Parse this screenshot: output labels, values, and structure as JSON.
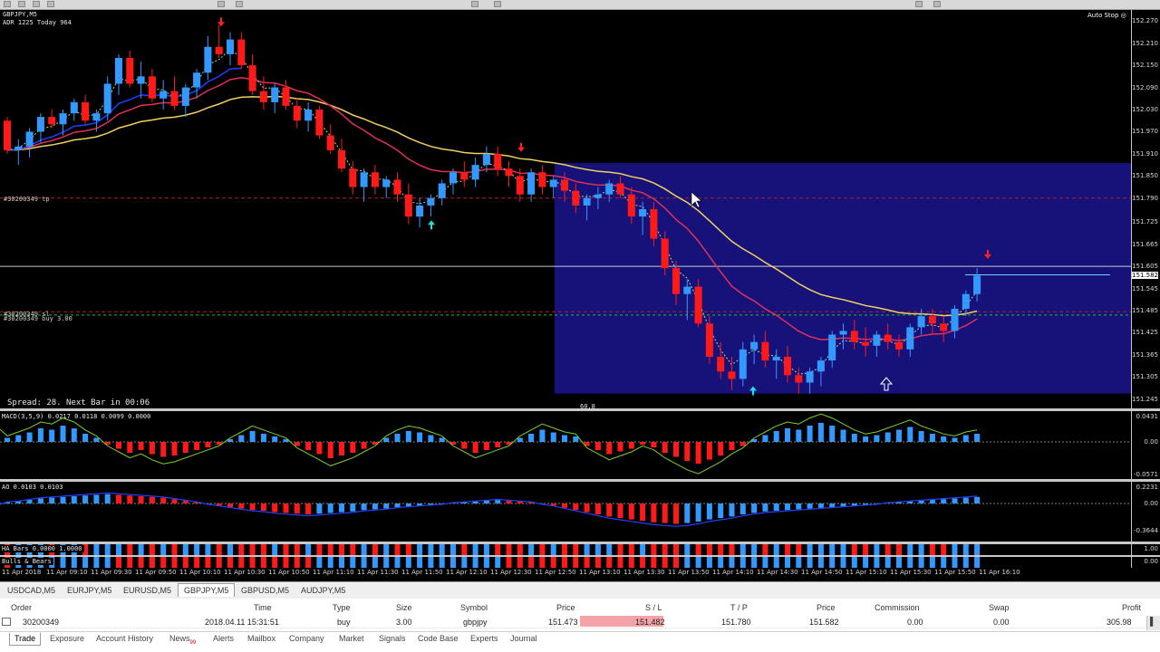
{
  "chart": {
    "symbol_line": "GBPJPY,M5",
    "adr_line": "ADR 1225  Today 964",
    "auto_stop": "Auto Stop",
    "tp_label": "#30200349 tp",
    "sl_label": "#30200349 sl",
    "buy_label": "#30200349 buy 3.00",
    "spread_text": "Spread: 28. Next Bar in 00:06",
    "box_label": "60.8",
    "macd_label": "MACD(3,5,9) 0.0217 0.0118 0.0099 0.0000",
    "ao_label": "AO 0.0103 0.0103",
    "ha_label": "HA Bars 0.0000 1.0000",
    "bb_label": "Bulls & Bears",
    "price_ticks": [
      "152.270",
      "152.210",
      "152.150",
      "152.090",
      "152.030",
      "151.970",
      "151.910",
      "151.850",
      "151.790",
      "151.725",
      "151.665",
      "151.605",
      "151.582",
      "151.545",
      "151.485",
      "151.425",
      "151.365",
      "151.305",
      "151.245"
    ],
    "macd_ticks": [
      "0.0431",
      "0.00",
      "-0.0571"
    ],
    "ao_ticks": [
      "0.2231",
      "0.00",
      "-0.3644"
    ],
    "hb_ticks": [
      "1.00",
      "0.00"
    ],
    "time_ticks": [
      "11 Apr 2018",
      "11 Apr 09:10",
      "11 Apr 09:30",
      "11 Apr 09:50",
      "11 Apr 10:10",
      "11 Apr 10:30",
      "11 Apr 10:50",
      "11 Apr 11:10",
      "11 Apr 11:30",
      "11 Apr 11:50",
      "11 Apr 12:10",
      "11 Apr 12:30",
      "11 Apr 12:50",
      "11 Apr 13:10",
      "11 Apr 13:30",
      "11 Apr 13:50",
      "11 Apr 14:10",
      "11 Apr 14:30",
      "11 Apr 14:50",
      "11 Apr 15:10",
      "11 Apr 15:30",
      "11 Apr 15:50",
      "11 Apr 16:10"
    ],
    "candles": [
      [
        152.0,
        152.01,
        151.91,
        151.92
      ],
      [
        151.92,
        151.95,
        151.88,
        151.93
      ],
      [
        151.93,
        151.98,
        151.9,
        151.97
      ],
      [
        151.97,
        152.02,
        151.94,
        152.01
      ],
      [
        152.01,
        152.03,
        151.98,
        151.99
      ],
      [
        151.99,
        152.03,
        151.96,
        152.02
      ],
      [
        152.02,
        152.06,
        152.0,
        152.05
      ],
      [
        152.05,
        152.07,
        151.99,
        152.0
      ],
      [
        152.0,
        152.03,
        151.97,
        152.02
      ],
      [
        152.02,
        152.12,
        152.0,
        152.1
      ],
      [
        152.1,
        152.18,
        152.07,
        152.17
      ],
      [
        152.17,
        152.19,
        152.09,
        152.1
      ],
      [
        152.1,
        152.16,
        152.06,
        152.12
      ],
      [
        152.12,
        152.14,
        152.05,
        152.06
      ],
      [
        152.06,
        152.11,
        152.03,
        152.08
      ],
      [
        152.08,
        152.12,
        152.03,
        152.04
      ],
      [
        152.04,
        152.1,
        152.01,
        152.09
      ],
      [
        152.09,
        152.14,
        152.06,
        152.13
      ],
      [
        152.13,
        152.23,
        152.11,
        152.2
      ],
      [
        152.2,
        152.26,
        152.17,
        152.18
      ],
      [
        152.18,
        152.24,
        152.15,
        152.22
      ],
      [
        152.22,
        152.24,
        152.14,
        152.15
      ],
      [
        152.15,
        152.18,
        152.07,
        152.08
      ],
      [
        152.08,
        152.12,
        152.03,
        152.05
      ],
      [
        152.05,
        152.1,
        152.02,
        152.09
      ],
      [
        152.09,
        152.11,
        152.03,
        152.04
      ],
      [
        152.04,
        152.06,
        151.98,
        152.0
      ],
      [
        152.0,
        152.05,
        151.97,
        152.03
      ],
      [
        152.03,
        152.04,
        151.95,
        151.96
      ],
      [
        151.96,
        151.99,
        151.91,
        151.92
      ],
      [
        151.92,
        151.95,
        151.86,
        151.87
      ],
      [
        151.87,
        151.89,
        151.8,
        151.82
      ],
      [
        151.82,
        151.87,
        151.78,
        151.86
      ],
      [
        151.86,
        151.88,
        151.8,
        151.82
      ],
      [
        151.82,
        151.85,
        151.79,
        151.84
      ],
      [
        151.84,
        151.86,
        151.78,
        151.8
      ],
      [
        151.8,
        151.83,
        151.72,
        151.74
      ],
      [
        151.74,
        151.79,
        151.71,
        151.77
      ],
      [
        151.77,
        151.8,
        151.74,
        151.79
      ],
      [
        151.79,
        151.84,
        151.77,
        151.83
      ],
      [
        151.83,
        151.87,
        151.8,
        151.86
      ],
      [
        151.86,
        151.89,
        151.82,
        151.84
      ],
      [
        151.84,
        151.9,
        151.82,
        151.88
      ],
      [
        151.88,
        151.93,
        151.86,
        151.91
      ],
      [
        151.91,
        151.93,
        151.85,
        151.87
      ],
      [
        151.87,
        151.89,
        151.82,
        151.85
      ],
      [
        151.85,
        151.87,
        151.78,
        151.8
      ],
      [
        151.8,
        151.87,
        151.78,
        151.86
      ],
      [
        151.86,
        151.88,
        151.8,
        151.82
      ],
      [
        151.82,
        151.85,
        151.79,
        151.84
      ],
      [
        151.84,
        151.86,
        151.78,
        151.81
      ],
      [
        151.81,
        151.83,
        151.75,
        151.77
      ],
      [
        151.77,
        151.8,
        151.73,
        151.79
      ],
      [
        151.79,
        151.82,
        151.76,
        151.8
      ],
      [
        151.8,
        151.84,
        151.78,
        151.83
      ],
      [
        151.83,
        151.85,
        151.79,
        151.8
      ],
      [
        151.8,
        151.82,
        151.72,
        151.74
      ],
      [
        151.74,
        151.78,
        151.69,
        151.76
      ],
      [
        151.76,
        151.78,
        151.66,
        151.68
      ],
      [
        151.68,
        151.7,
        151.58,
        151.6
      ],
      [
        151.6,
        151.62,
        151.5,
        151.53
      ],
      [
        151.53,
        151.57,
        151.46,
        151.55
      ],
      [
        151.55,
        151.57,
        151.44,
        151.45
      ],
      [
        151.45,
        151.47,
        151.34,
        151.36
      ],
      [
        151.36,
        151.4,
        151.3,
        151.32
      ],
      [
        151.32,
        151.36,
        151.27,
        151.3
      ],
      [
        151.3,
        151.4,
        151.28,
        151.38
      ],
      [
        151.38,
        151.42,
        151.34,
        151.4
      ],
      [
        151.4,
        151.43,
        151.33,
        151.35
      ],
      [
        151.35,
        151.38,
        151.3,
        151.36
      ],
      [
        151.36,
        151.39,
        151.29,
        151.31
      ],
      [
        151.31,
        151.33,
        151.26,
        151.29
      ],
      [
        151.29,
        151.33,
        151.26,
        151.32
      ],
      [
        151.32,
        151.36,
        151.28,
        151.35
      ],
      [
        151.35,
        151.43,
        151.33,
        151.42
      ],
      [
        151.42,
        151.45,
        151.38,
        151.43
      ],
      [
        151.43,
        151.46,
        151.38,
        151.4
      ],
      [
        151.4,
        151.44,
        151.36,
        151.39
      ],
      [
        151.39,
        151.43,
        151.36,
        151.42
      ],
      [
        151.42,
        151.45,
        151.38,
        151.4
      ],
      [
        151.4,
        151.42,
        151.36,
        151.38
      ],
      [
        151.38,
        151.45,
        151.36,
        151.44
      ],
      [
        151.44,
        151.49,
        151.42,
        151.47
      ],
      [
        151.47,
        151.49,
        151.42,
        151.45
      ],
      [
        151.45,
        151.47,
        151.4,
        151.43
      ],
      [
        151.43,
        151.5,
        151.41,
        151.49
      ],
      [
        151.49,
        151.54,
        151.47,
        151.53
      ],
      [
        151.53,
        151.6,
        151.51,
        151.58
      ]
    ]
  },
  "symbol_tabs": [
    "USDCAD,M5",
    "EURJPY,M5",
    "EURUSD,M5",
    "GBPJPY,M5",
    "GBPUSD,M5",
    "AUDJPY,M5"
  ],
  "active_symbol_tab": 3,
  "terminal": {
    "headers": {
      "order": "Order",
      "time": "Time",
      "type": "Type",
      "size": "Size",
      "symbol": "Symbol",
      "price": "Price",
      "sl": "S / L",
      "tp": "T / P",
      "price2": "Price",
      "commission": "Commission",
      "swap": "Swap",
      "profit": "Profit"
    },
    "row": {
      "order": "30200349",
      "time": "2018.04.11 15:31:51",
      "type": "buy",
      "size": "3.00",
      "symbol": "gbpjpy",
      "price": "151.473",
      "sl": "151.482",
      "tp": "151.780",
      "price2": "151.582",
      "commission": "0.00",
      "swap": "0.00",
      "profit": "305.98"
    },
    "bottom_tabs": [
      "Trade",
      "Exposure",
      "Account History",
      "News",
      "Alerts",
      "Mailbox",
      "Company",
      "Market",
      "Signals",
      "Code Base",
      "Experts",
      "Journal"
    ],
    "news_badge": "99",
    "active_tab": 0
  },
  "colors": {
    "bull": "#3399ff",
    "bear": "#ff1a1a",
    "box": "#16127a",
    "ma_yellow": "#f0d060",
    "ma_red": "#e0305a",
    "ma_blue": "#2040ff"
  }
}
